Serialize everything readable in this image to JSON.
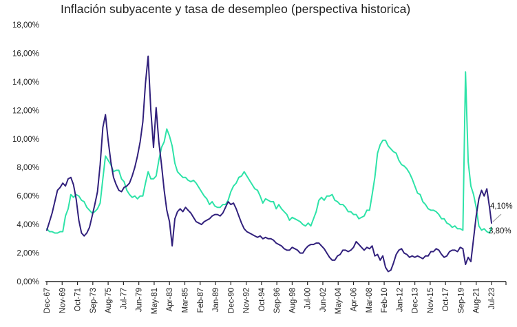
{
  "title": "Inflación subyacente y tasa de desempleo (perspectiva historica)",
  "end_labels": {
    "inflacion": "4,10%",
    "desempleo": "3,80%"
  },
  "colors": {
    "inflacion": "#31207c",
    "desempleo": "#2ee3a8",
    "axis": "#262626",
    "leader": "#a0a0a0",
    "background": "#ffffff"
  },
  "chart_data": {
    "type": "line",
    "title": "Inflación subyacente y tasa de desempleo (perspectiva historica)",
    "xlabel": "",
    "ylabel": "",
    "grid": false,
    "legend": false,
    "ylim": [
      0,
      18
    ],
    "y_tick_step": 2,
    "y_tick_labels": [
      "0,00%",
      "2,00%",
      "4,00%",
      "6,00%",
      "8,00%",
      "10,00%",
      "12,00%",
      "14,00%",
      "16,00%",
      "18,00%"
    ],
    "x_tick_labels": [
      "Dec-67",
      "Nov-69",
      "Oct-71",
      "Sep-73",
      "Aug-75",
      "Jul-77",
      "Jun-79",
      "May-81",
      "Apr-83",
      "Mar-85",
      "Feb-87",
      "Jan-89",
      "Dec-90",
      "Nov-92",
      "Oct-94",
      "Sep-96",
      "Aug-98",
      "Jul-00",
      "Jun-02",
      "May-04",
      "Apr-06",
      "Mar-08",
      "Feb-10",
      "Jan-12",
      "Dec-13",
      "Nov-15",
      "Oct-17",
      "Sep-19",
      "Aug-21",
      "Jul-23"
    ],
    "x_start": "Dec-67",
    "x_end": "Jul-23",
    "sample_interval_months": 4,
    "total_months": 667,
    "series": [
      {
        "name": "Tasa de desempleo",
        "color": "#2ee3a8",
        "end_label": "3,80%",
        "end_value": 3.8,
        "values": [
          3.7,
          3.5,
          3.5,
          3.4,
          3.4,
          3.5,
          3.5,
          4.6,
          5.1,
          6.1,
          5.9,
          6.1,
          6.0,
          5.7,
          5.6,
          5.2,
          5.0,
          4.8,
          4.9,
          5.1,
          5.5,
          7.2,
          8.8,
          8.5,
          8.2,
          7.7,
          7.8,
          7.8,
          7.2,
          7.0,
          6.4,
          6.1,
          5.9,
          6.0,
          5.8,
          6.0,
          6.0,
          6.9,
          7.7,
          7.2,
          7.2,
          7.4,
          8.5,
          9.4,
          9.8,
          10.7,
          10.2,
          9.5,
          8.3,
          7.7,
          7.5,
          7.3,
          7.3,
          7.1,
          7.0,
          7.1,
          6.9,
          6.6,
          6.3,
          6.0,
          5.8,
          5.4,
          5.6,
          5.3,
          5.2,
          5.2,
          5.4,
          5.4,
          5.7,
          6.3,
          6.7,
          6.9,
          7.3,
          7.4,
          7.7,
          7.4,
          7.1,
          6.8,
          6.5,
          6.4,
          6.0,
          5.5,
          5.8,
          5.7,
          5.6,
          5.6,
          5.1,
          5.4,
          5.1,
          4.9,
          4.7,
          4.3,
          4.5,
          4.4,
          4.3,
          4.2,
          4.0,
          3.9,
          4.1,
          3.9,
          4.4,
          4.9,
          5.7,
          5.9,
          5.7,
          6.0,
          6.0,
          6.1,
          5.7,
          5.6,
          5.4,
          5.4,
          5.2,
          4.9,
          4.9,
          4.7,
          4.7,
          4.4,
          4.5,
          4.6,
          5.0,
          5.0,
          6.1,
          7.3,
          9.0,
          9.6,
          9.9,
          9.9,
          9.5,
          9.3,
          9.1,
          9.0,
          8.5,
          8.2,
          8.1,
          7.9,
          7.6,
          7.2,
          6.7,
          6.2,
          6.1,
          5.6,
          5.4,
          5.1,
          5.0,
          5.0,
          4.9,
          4.7,
          4.4,
          4.4,
          4.1,
          4.0,
          3.8,
          3.9,
          3.7,
          3.7,
          3.6,
          14.7,
          8.4,
          6.7,
          6.1,
          5.2,
          3.9,
          3.6,
          3.7,
          3.5,
          3.4,
          3.8
        ]
      },
      {
        "name": "Inflación subyacente",
        "color": "#31207c",
        "end_label": "4,10%",
        "end_value": 4.1,
        "values": [
          3.6,
          4.2,
          4.8,
          5.6,
          6.4,
          6.6,
          6.9,
          6.7,
          7.2,
          7.3,
          6.8,
          5.8,
          4.3,
          3.4,
          3.2,
          3.4,
          3.8,
          4.6,
          5.4,
          6.3,
          8.2,
          10.8,
          11.7,
          9.9,
          8.4,
          7.3,
          6.8,
          6.4,
          6.3,
          6.6,
          6.7,
          6.9,
          7.4,
          8.0,
          8.8,
          9.8,
          11.2,
          13.9,
          15.8,
          12.0,
          9.4,
          12.2,
          9.8,
          8.2,
          6.4,
          5.0,
          4.2,
          2.5,
          4.4,
          4.9,
          5.1,
          4.9,
          5.2,
          5.0,
          4.8,
          4.5,
          4.2,
          4.1,
          4.0,
          4.2,
          4.3,
          4.4,
          4.6,
          4.7,
          4.7,
          4.6,
          4.8,
          5.2,
          5.6,
          5.4,
          5.5,
          5.1,
          4.6,
          4.1,
          3.7,
          3.5,
          3.4,
          3.3,
          3.2,
          3.1,
          3.2,
          3.0,
          3.1,
          3.0,
          3.0,
          2.9,
          2.7,
          2.6,
          2.5,
          2.3,
          2.2,
          2.2,
          2.4,
          2.3,
          2.2,
          2.0,
          2.0,
          2.3,
          2.5,
          2.6,
          2.6,
          2.7,
          2.7,
          2.5,
          2.3,
          2.0,
          1.7,
          1.5,
          1.5,
          1.8,
          1.9,
          2.2,
          2.2,
          2.1,
          2.2,
          2.4,
          2.8,
          2.6,
          2.4,
          2.2,
          2.4,
          2.3,
          2.5,
          1.8,
          1.9,
          1.5,
          1.8,
          1.0,
          0.7,
          0.8,
          1.3,
          1.9,
          2.2,
          2.3,
          2.0,
          1.9,
          1.7,
          1.8,
          1.7,
          1.8,
          1.7,
          1.6,
          1.8,
          1.8,
          2.1,
          2.1,
          2.3,
          2.2,
          1.9,
          1.7,
          1.8,
          2.1,
          2.2,
          2.2,
          2.1,
          2.4,
          2.3,
          1.2,
          1.7,
          1.4,
          3.0,
          4.6,
          5.8,
          6.4,
          6.0,
          6.5,
          5.2,
          4.1
        ]
      }
    ]
  }
}
